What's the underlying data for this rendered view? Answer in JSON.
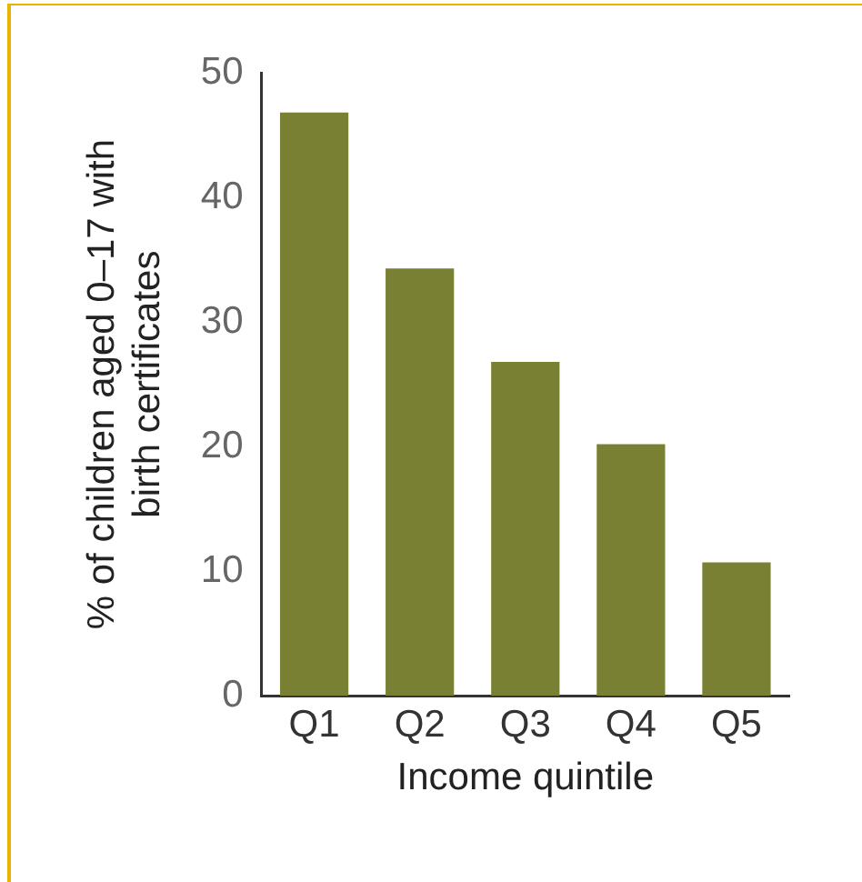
{
  "chart_data": {
    "type": "bar",
    "xlabel": "Income quintile",
    "ylabel": "% of children aged 0–17 with birth certificates",
    "categories": [
      "Q1",
      "Q2",
      "Q3",
      "Q4",
      "Q5"
    ],
    "values": [
      46.8,
      34.3,
      26.8,
      20.2,
      10.7
    ],
    "color": "#7a8033",
    "ylim": [
      0,
      50
    ],
    "yticks": [
      0,
      10,
      20,
      30,
      40,
      50
    ],
    "grid": false,
    "legend": false
  }
}
